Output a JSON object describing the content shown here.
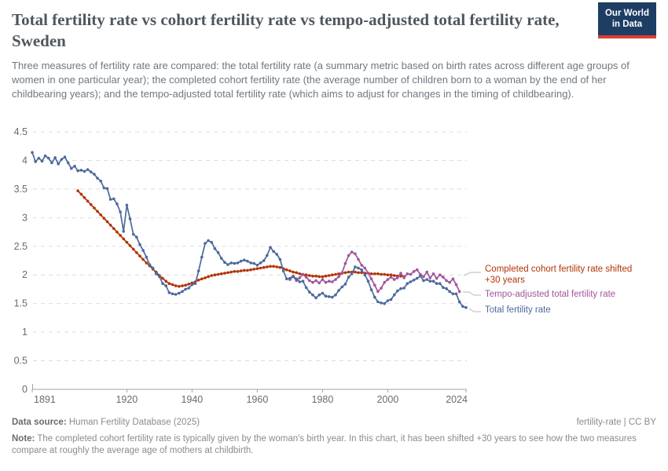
{
  "header": {
    "title": "Total fertility rate vs cohort fertility rate vs tempo-adjusted total fertility rate, Sweden",
    "subtitle": "Three measures of fertility rate are compared: the total fertility rate (a summary metric based on birth rates across different age groups of women in one particular year); the completed cohort fertility rate (the average number of children born to a woman by the end of her childbearing years); and the tempo-adjusted total fertility rate (which aims to adjust for changes in the timing of childbearing).",
    "logo": {
      "line1": "Our World",
      "line2": "in Data",
      "bg_color": "#1d3d63",
      "bar_color": "#dc3f34"
    }
  },
  "chart_data": {
    "type": "line",
    "title": "Total fertility rate vs cohort fertility rate vs tempo-adjusted total fertility rate, Sweden",
    "xlabel": "",
    "ylabel": "",
    "xlim": [
      1891,
      2024
    ],
    "ylim": [
      0,
      4.5
    ],
    "x_ticks": [
      1891,
      1920,
      1940,
      1960,
      1980,
      2000,
      2024
    ],
    "y_ticks": [
      0,
      0.5,
      1,
      1.5,
      2,
      2.5,
      3,
      3.5,
      4,
      4.5
    ],
    "grid": true,
    "legend_position": "right",
    "series": [
      {
        "name": "Completed cohort fertility rate shifted +30 years",
        "color": "#B13507",
        "start_year": 1905,
        "end_year": 2005,
        "values": [
          3.47,
          3.41,
          3.35,
          3.29,
          3.23,
          3.17,
          3.11,
          3.05,
          2.99,
          2.93,
          2.87,
          2.81,
          2.75,
          2.69,
          2.63,
          2.57,
          2.51,
          2.45,
          2.39,
          2.33,
          2.27,
          2.21,
          2.16,
          2.1,
          2.05,
          1.99,
          1.94,
          1.89,
          1.85,
          1.83,
          1.81,
          1.8,
          1.81,
          1.82,
          1.84,
          1.86,
          1.88,
          1.91,
          1.93,
          1.95,
          1.97,
          1.99,
          2.0,
          2.01,
          2.02,
          2.03,
          2.04,
          2.05,
          2.06,
          2.06,
          2.07,
          2.08,
          2.08,
          2.09,
          2.1,
          2.11,
          2.12,
          2.13,
          2.14,
          2.15,
          2.15,
          2.14,
          2.13,
          2.11,
          2.09,
          2.07,
          2.05,
          2.04,
          2.02,
          2.01,
          2.0,
          1.99,
          1.98,
          1.98,
          1.97,
          1.97,
          1.98,
          1.99,
          2.0,
          2.01,
          2.02,
          2.03,
          2.04,
          2.05,
          2.05,
          2.05,
          2.04,
          2.04,
          2.03,
          2.03,
          2.02,
          2.02,
          2.02,
          2.01,
          2.01,
          2.0,
          2.0,
          1.99,
          1.98,
          1.98,
          1.97
        ]
      },
      {
        "name": "Tempo-adjusted total fertility rate",
        "color": "#A2559C",
        "start_year": 1970,
        "end_year": 2022,
        "values": [
          1.92,
          1.97,
          1.9,
          1.95,
          2.01,
          1.96,
          1.9,
          1.87,
          1.9,
          1.86,
          1.92,
          1.87,
          1.89,
          1.88,
          1.92,
          1.97,
          2.04,
          2.2,
          2.34,
          2.4,
          2.37,
          2.27,
          2.17,
          2.12,
          2.03,
          1.93,
          1.82,
          1.71,
          1.77,
          1.87,
          1.92,
          1.96,
          1.92,
          1.95,
          2.03,
          1.95,
          2.02,
          2.01,
          2.06,
          2.09,
          2.01,
          1.97,
          2.05,
          1.95,
          2.02,
          1.94,
          2.0,
          1.96,
          1.9,
          1.87,
          1.93,
          1.83,
          1.71
        ]
      },
      {
        "name": "Total fertility rate",
        "color": "#4C6A9C",
        "start_year": 1891,
        "end_year": 2024,
        "values": [
          4.14,
          3.98,
          4.04,
          3.99,
          4.08,
          4.04,
          3.96,
          4.05,
          3.94,
          4.02,
          4.06,
          3.96,
          3.86,
          3.9,
          3.82,
          3.83,
          3.81,
          3.84,
          3.8,
          3.76,
          3.69,
          3.64,
          3.52,
          3.51,
          3.32,
          3.33,
          3.24,
          3.1,
          2.76,
          3.22,
          2.98,
          2.71,
          2.66,
          2.53,
          2.43,
          2.31,
          2.18,
          2.12,
          2.02,
          1.97,
          1.85,
          1.81,
          1.69,
          1.67,
          1.66,
          1.68,
          1.71,
          1.75,
          1.77,
          1.83,
          1.85,
          2.07,
          2.31,
          2.55,
          2.6,
          2.57,
          2.46,
          2.39,
          2.29,
          2.22,
          2.18,
          2.21,
          2.2,
          2.21,
          2.24,
          2.26,
          2.24,
          2.21,
          2.2,
          2.17,
          2.21,
          2.25,
          2.34,
          2.48,
          2.41,
          2.36,
          2.27,
          2.07,
          1.93,
          1.94,
          1.98,
          1.93,
          1.88,
          1.89,
          1.78,
          1.7,
          1.65,
          1.6,
          1.65,
          1.68,
          1.63,
          1.62,
          1.61,
          1.65,
          1.73,
          1.79,
          1.84,
          1.96,
          2.02,
          2.14,
          2.12,
          2.09,
          2.0,
          1.89,
          1.74,
          1.61,
          1.53,
          1.51,
          1.5,
          1.55,
          1.57,
          1.65,
          1.72,
          1.76,
          1.77,
          1.85,
          1.88,
          1.91,
          1.94,
          1.98,
          1.9,
          1.92,
          1.89,
          1.89,
          1.85,
          1.85,
          1.78,
          1.76,
          1.71,
          1.67,
          1.67,
          1.53,
          1.45,
          1.43
        ]
      }
    ]
  },
  "legend": {
    "entries": [
      {
        "lines": [
          "Completed cohort fertility rate shifted",
          "+30 years"
        ],
        "color": "#B13507"
      },
      {
        "lines": [
          "Tempo-adjusted total fertility rate"
        ],
        "color": "#A2559C"
      },
      {
        "lines": [
          "Total fertility rate"
        ],
        "color": "#4C6A9C"
      }
    ]
  },
  "footer": {
    "data_source_label": "Data source:",
    "data_source_value": " Human Fertility Database (2025)",
    "license": "fertility-rate | CC BY",
    "note_label": "Note:",
    "note_text": " The completed cohort fertility rate is typically given by the woman's birth year. In this chart, it has been shifted +30 years to see how the two measures compare at roughly the average age of mothers at childbirth."
  }
}
